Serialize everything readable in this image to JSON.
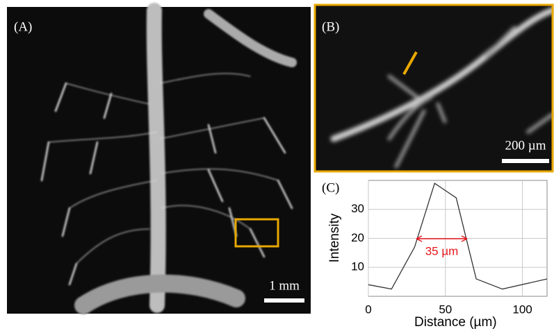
{
  "panels": [
    {
      "label": "(A)",
      "scale_bar": "1 mm"
    },
    {
      "label": "(B)",
      "scale_bar": "200 µm"
    },
    {
      "label": "(C)"
    }
  ],
  "chart_data": {
    "type": "line",
    "xlabel": "Distance (µm)",
    "ylabel": "Intensity",
    "x": [
      0,
      15,
      30,
      43,
      57,
      70,
      87,
      116
    ],
    "values": [
      4,
      2.5,
      17,
      39,
      34,
      6,
      2.5,
      6
    ],
    "color": "#333333",
    "xlim": [
      0,
      116
    ],
    "ylim": [
      0,
      40
    ],
    "xticks": [
      0,
      50,
      100
    ],
    "yticks": [
      10,
      20,
      30
    ],
    "grid": true,
    "annotation": "35 µm",
    "annotation_color": "#e8141b"
  }
}
